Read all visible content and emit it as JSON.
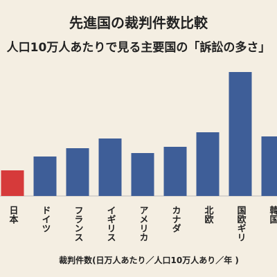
{
  "chart_data": {
    "type": "bar",
    "title": "先進国の裁判件数比較",
    "subtitle": "人口10万人あたりで見る主要国の「訴訟の多さ」",
    "x_label": "裁判件数(日万人あたり／人口10万人あり／年 )",
    "categories": [
      "日本",
      "ドイツ",
      "フランス",
      "イギリス",
      "アメリカ",
      "カナダ",
      "北欧",
      "国欧ギリ",
      "韓国"
    ],
    "values": [
      37,
      57,
      69,
      83,
      62,
      71,
      92,
      179,
      86
    ],
    "colors": [
      "#d63a3a",
      "#3e5e98",
      "#3e5e98",
      "#3e5e98",
      "#3e5e98",
      "#3e5e98",
      "#3e5e98",
      "#3e5e98",
      "#3e5e98"
    ],
    "ylim": [
      0,
      180
    ]
  }
}
